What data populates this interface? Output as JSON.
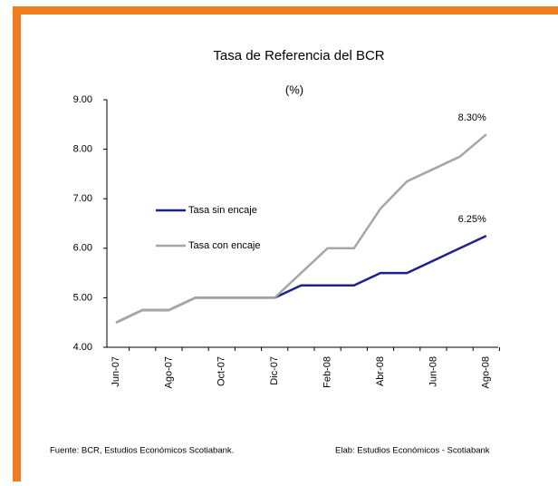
{
  "chart_data": {
    "type": "line",
    "title": "Tasa de Referencia del BCR",
    "subtitle": "(%)",
    "categories": [
      "Jun-07",
      null,
      "Ago-07",
      null,
      "Oct-07",
      null,
      "Dic-07",
      null,
      "Feb-08",
      null,
      "Abr-08",
      null,
      "Jun-08",
      null,
      "Ago-08"
    ],
    "series": [
      {
        "name": "Tasa sin encaje",
        "color": "#1f1f8f",
        "values": [
          4.5,
          4.75,
          4.75,
          5.0,
          5.0,
          5.0,
          5.0,
          5.25,
          5.25,
          5.25,
          5.5,
          5.5,
          5.75,
          6.0,
          6.25
        ],
        "value_labels": [
          null,
          null,
          null,
          null,
          null,
          null,
          null,
          null,
          null,
          null,
          null,
          null,
          null,
          null,
          "6.25%"
        ]
      },
      {
        "name": "Tasa con encaje",
        "color": "#a6a6a6",
        "values": [
          4.5,
          4.75,
          4.75,
          5.0,
          5.0,
          5.0,
          5.0,
          5.5,
          6.0,
          6.0,
          6.8,
          7.35,
          7.6,
          7.85,
          8.3
        ],
        "value_labels": [
          null,
          null,
          null,
          null,
          null,
          null,
          null,
          null,
          null,
          null,
          null,
          null,
          null,
          null,
          "8.30%"
        ]
      }
    ],
    "ylim": [
      4,
      9
    ],
    "yticks": [
      {
        "value": 4,
        "label": "4.00"
      },
      {
        "value": 5,
        "label": "5.00"
      },
      {
        "value": 6,
        "label": "6.00"
      },
      {
        "value": 7,
        "label": "7.00"
      },
      {
        "value": 8,
        "label": "8.00"
      },
      {
        "value": 9,
        "label": "9.00"
      }
    ],
    "legend": "left",
    "source": "Fuente: BCR, Estudios Económicos Scotiabank.",
    "credit": "Elab: Estudios Económicos - Scotiabank"
  }
}
